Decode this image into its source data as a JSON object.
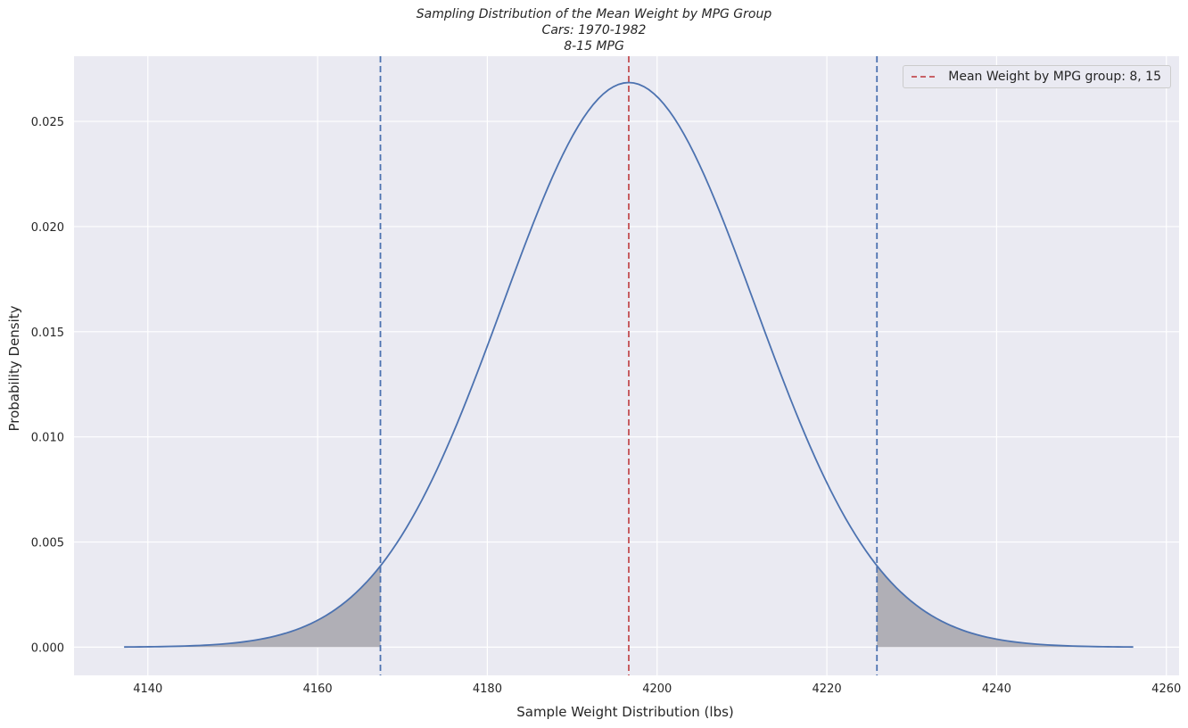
{
  "chart_data": {
    "type": "line",
    "title_lines": [
      "Sampling Distribution of the Mean Weight by MPG Group",
      "Cars: 1970-1982",
      "8-15 MPG"
    ],
    "xlabel": "Sample Weight Distribution (lbs)",
    "ylabel": "Probability Density",
    "xlim": [
      4131.3,
      4261.5
    ],
    "ylim": [
      -0.00134,
      0.0281
    ],
    "xticks": [
      4140,
      4160,
      4180,
      4200,
      4220,
      4240,
      4260
    ],
    "xtick_labels": [
      "4140",
      "4160",
      "4180",
      "4200",
      "4220",
      "4240",
      "4260"
    ],
    "yticks": [
      0.0,
      0.005,
      0.01,
      0.015,
      0.02,
      0.025
    ],
    "ytick_labels": [
      "0.000",
      "0.005",
      "0.010",
      "0.015",
      "0.020",
      "0.025"
    ],
    "grid": true,
    "legend_position": "top-right",
    "curve": {
      "distribution": "normal",
      "mean": 4196.66,
      "std": 14.86,
      "x_start": 4137.2,
      "x_end": 4256.1,
      "color": "#4c72b0"
    },
    "vlines": [
      {
        "x": 4196.66,
        "color": "#c44e52",
        "style": "dashed",
        "legend": "Mean Weight by MPG group: 8, 15"
      },
      {
        "x": 4167.4,
        "color": "#4c72b0",
        "style": "dashed"
      },
      {
        "x": 4225.9,
        "color": "#4c72b0",
        "style": "dashed"
      }
    ],
    "shaded_tails": {
      "left": [
        4137.2,
        4167.4
      ],
      "right": [
        4225.9,
        4256.1
      ],
      "color": "#b0afb6"
    },
    "colors": {
      "plot_background": "#eaeaf2",
      "grid": "#ffffff"
    }
  }
}
